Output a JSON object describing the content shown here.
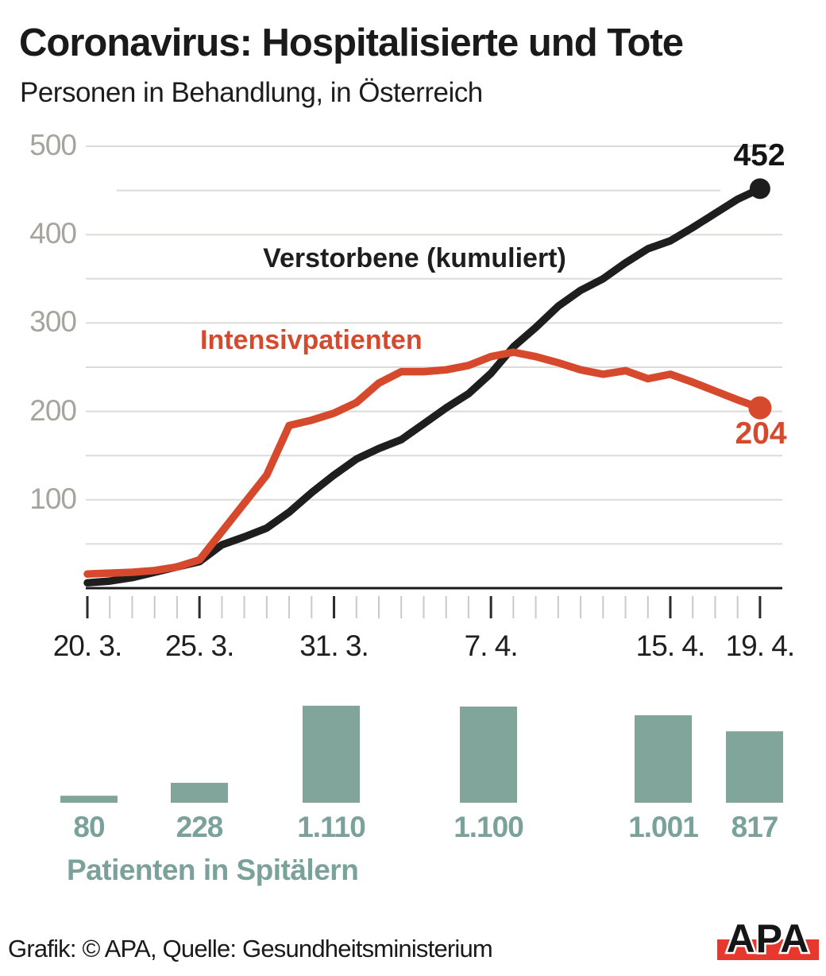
{
  "header": {
    "title": "Coronavirus: Hospitalisierte und Tote",
    "subtitle": "Personen in Behandlung, in Österreich"
  },
  "footer": {
    "credit": "Grafik: © APA, Quelle: Gesundheitsministerium"
  },
  "logo": {
    "text": "APA",
    "bar_color": "#e8382e",
    "text_color": "#161616"
  },
  "colors": {
    "black_series": "#1e1e1e",
    "red_series": "#d7492d",
    "teal_bar": "#81a49b",
    "teal_text": "#7ba29a",
    "grid": "#dbdbd7",
    "axis": "#1a1a1a",
    "y_label": "#a6a59d",
    "tick_major": "#2b2b2b",
    "tick_minor": "#c9c9c5"
  },
  "chart_data": [
    {
      "type": "line",
      "title": "Coronavirus: Hospitalisierte und Tote",
      "subtitle": "Personen in Behandlung, in Österreich",
      "ylim": [
        0,
        500
      ],
      "ytick_labels": [
        500,
        400,
        300,
        200,
        100
      ],
      "grid_step": 50,
      "grid": true,
      "x_days_total": 31,
      "x_tick_labels": [
        {
          "label": "20. 3.",
          "day": 0
        },
        {
          "label": "25. 3.",
          "day": 5
        },
        {
          "label": "31. 3.",
          "day": 11
        },
        {
          "label": "7. 4.",
          "day": 18
        },
        {
          "label": "15. 4.",
          "day": 26
        },
        {
          "label": "19. 4.",
          "day": 30
        }
      ],
      "series": [
        {
          "name": "Verstorbene (kumuliert)",
          "color_key": "black_series",
          "end_value_label": "452",
          "values": [
            6,
            8,
            12,
            18,
            24,
            30,
            49,
            58,
            68,
            86,
            108,
            128,
            146,
            158,
            168,
            186,
            204,
            220,
            243,
            273,
            295,
            319,
            337,
            350,
            368,
            384,
            393,
            408,
            424,
            440,
            452
          ]
        },
        {
          "name": "Intensivpatienten",
          "color_key": "red_series",
          "end_value_label": "204",
          "values": [
            16,
            17,
            18,
            20,
            24,
            32,
            64,
            96,
            128,
            184,
            190,
            198,
            210,
            232,
            245,
            245,
            247,
            252,
            262,
            267,
            262,
            255,
            247,
            242,
            246,
            237,
            242,
            233,
            223,
            213,
            204
          ]
        }
      ]
    },
    {
      "type": "bar",
      "title": "Patienten in Spitälern",
      "categories": [
        "20. 3.",
        "25. 3.",
        "31. 3.",
        "7. 4.",
        "15. 4.",
        "19. 4."
      ],
      "values": [
        80,
        228,
        1110,
        1100,
        1001,
        817
      ],
      "value_labels": [
        "80",
        "228",
        "1.110",
        "1.100",
        "1.001",
        "817"
      ]
    }
  ]
}
